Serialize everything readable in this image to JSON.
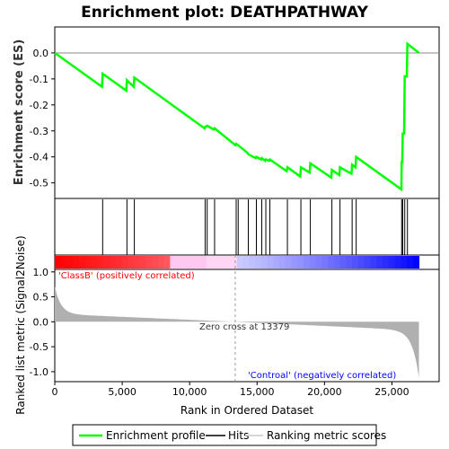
{
  "chart_data": {
    "type": "line",
    "title": "Enrichment plot: DEATHPATHWAY",
    "top_panel": {
      "ylabel": "Enrichment score (ES)",
      "ylim": [
        -0.56,
        0.1
      ],
      "yticks": [
        "0.0",
        "-0.1",
        "-0.2",
        "-0.3",
        "-0.4",
        "-0.5"
      ],
      "series": [
        {
          "name": "Enrichment profile",
          "color": "#00ff00",
          "x": [
            0,
            3500,
            3550,
            5300,
            5350,
            5850,
            5900,
            11100,
            11150,
            11300,
            11800,
            11850,
            13400,
            13450,
            13600,
            14300,
            14350,
            14900,
            14950,
            15300,
            15350,
            15600,
            15650,
            15900,
            15950,
            17200,
            17250,
            18200,
            18250,
            18900,
            18950,
            20500,
            20550,
            21100,
            21150,
            22000,
            22050,
            22300,
            22350,
            25700,
            25720,
            25760,
            25800,
            25900,
            25950,
            26100,
            26150,
            27000
          ],
          "y": [
            0.0,
            -0.13,
            -0.08,
            -0.145,
            -0.105,
            -0.13,
            -0.095,
            -0.29,
            -0.285,
            -0.28,
            -0.295,
            -0.29,
            -0.355,
            -0.35,
            -0.355,
            -0.385,
            -0.39,
            -0.405,
            -0.4,
            -0.41,
            -0.405,
            -0.415,
            -0.41,
            -0.415,
            -0.41,
            -0.455,
            -0.44,
            -0.475,
            -0.44,
            -0.46,
            -0.425,
            -0.48,
            -0.45,
            -0.47,
            -0.44,
            -0.465,
            -0.43,
            -0.44,
            -0.4,
            -0.525,
            -0.42,
            -0.42,
            -0.31,
            -0.31,
            -0.09,
            -0.09,
            0.035,
            0.0
          ]
        }
      ]
    },
    "hits": {
      "name": "Hits",
      "color": "#000000",
      "ranks": [
        3550,
        5350,
        5900,
        11150,
        11300,
        11850,
        13450,
        13600,
        14350,
        14950,
        15350,
        15650,
        15950,
        17250,
        18250,
        18950,
        20550,
        21150,
        22050,
        22350,
        25720,
        25800,
        25950,
        26150
      ]
    },
    "bottom_panel": {
      "ylabel": "Ranked list metric (Signal2Noise)",
      "xlabel": "Rank in Ordered Dataset",
      "ylim": [
        -1.2,
        1.05
      ],
      "yticks": [
        "1.0",
        "0.5",
        "0.0",
        "-0.5",
        "-1.0"
      ],
      "xlim": [
        0,
        28500
      ],
      "xticks": [
        "0",
        "5,000",
        "10,000",
        "15,000",
        "20,000",
        "25,000"
      ],
      "series_name": "Ranking metric scores",
      "series_color": "#b0b0b0",
      "zero_cross_rank": 13379,
      "annotations": {
        "zero_cross": "Zero cross at 13379",
        "positive": "'ClassB' (positively correlated)",
        "negative": "'Controal' (negatively correlated)"
      },
      "positive_color": "#ff0000",
      "negative_color": "#0000ff"
    },
    "n_genes": 27000,
    "legend": {
      "position": "bottom",
      "items": [
        {
          "label": "Enrichment profile",
          "color": "#00ff00"
        },
        {
          "label": "Hits",
          "color": "#000000"
        },
        {
          "label": "Ranking metric scores",
          "color": "#c8c8c8"
        }
      ]
    }
  }
}
